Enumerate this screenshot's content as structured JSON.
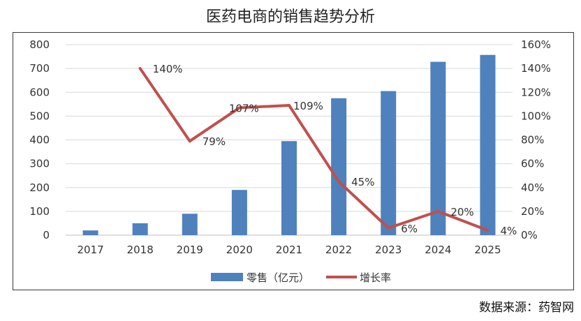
{
  "chart_data": {
    "type": "bar",
    "title": "医药电商的销售趋势分析",
    "categories": [
      "2017",
      "2018",
      "2019",
      "2020",
      "2021",
      "2022",
      "2023",
      "2024",
      "2025"
    ],
    "series": [
      {
        "name": "零售（亿元）",
        "type": "bar",
        "axis": "left",
        "color": "#4F81BD",
        "values": [
          20,
          50,
          90,
          190,
          395,
          575,
          605,
          728,
          757
        ]
      },
      {
        "name": "增长率",
        "type": "line",
        "axis": "right",
        "color": "#C0504D",
        "values": [
          null,
          140,
          79,
          107,
          109,
          45,
          6,
          20,
          4
        ],
        "labels": [
          "",
          "140%",
          "79%",
          "107%",
          "109%",
          "45%",
          "6%",
          "20%",
          "4%"
        ]
      }
    ],
    "ylim_left": [
      0,
      800
    ],
    "yticks_left": [
      "0",
      "100",
      "200",
      "300",
      "400",
      "500",
      "600",
      "700",
      "800"
    ],
    "ylim_right": [
      0,
      160
    ],
    "yticks_right": [
      "0%",
      "20%",
      "40%",
      "60%",
      "80%",
      "100%",
      "120%",
      "140%",
      "160%"
    ],
    "grid": true,
    "legend": "bottom"
  },
  "source": "数据来源：药智网"
}
